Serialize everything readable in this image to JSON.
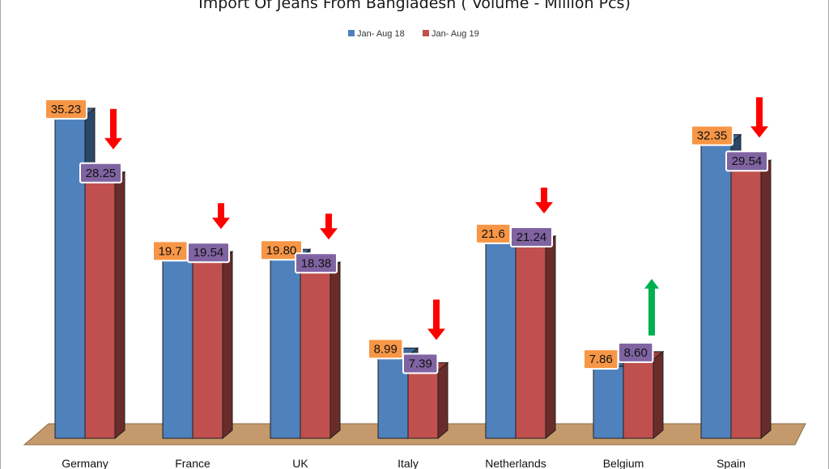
{
  "chart_data": {
    "type": "bar",
    "title": "Import Of Jeans From Bangladesh ( Volume - Million Pcs)",
    "categories": [
      "Germany",
      "France",
      "UK",
      "Italy",
      "Netherlands",
      "Belgium",
      "Spain"
    ],
    "series": [
      {
        "name": "Jan- Aug 18",
        "color": "#4f81bd",
        "label_bg": "#f79646",
        "values": [
          35.23,
          19.7,
          19.8,
          8.99,
          21.6,
          7.86,
          32.35
        ],
        "labels": [
          "35.23",
          "19.7",
          "19.80",
          "8.99",
          "21.6",
          "7.86",
          "32.35"
        ]
      },
      {
        "name": "Jan- Aug 19",
        "color": "#c0504d",
        "label_bg": "#8064a2",
        "values": [
          28.25,
          19.54,
          18.38,
          7.39,
          21.24,
          8.6,
          29.54
        ],
        "labels": [
          "28.25",
          "19.54",
          "18.38",
          "7.39",
          "21.24",
          "8.60",
          "29.54"
        ]
      }
    ],
    "trend_arrows": [
      "down",
      "down",
      "down",
      "down",
      "down",
      "up",
      "down"
    ],
    "arrow_colors": {
      "down": "#ff0000",
      "up": "#00b050"
    },
    "legend_position": "top",
    "ylim": [
      0,
      40
    ],
    "grid": false,
    "chart_style": "3d-clustered-column"
  }
}
